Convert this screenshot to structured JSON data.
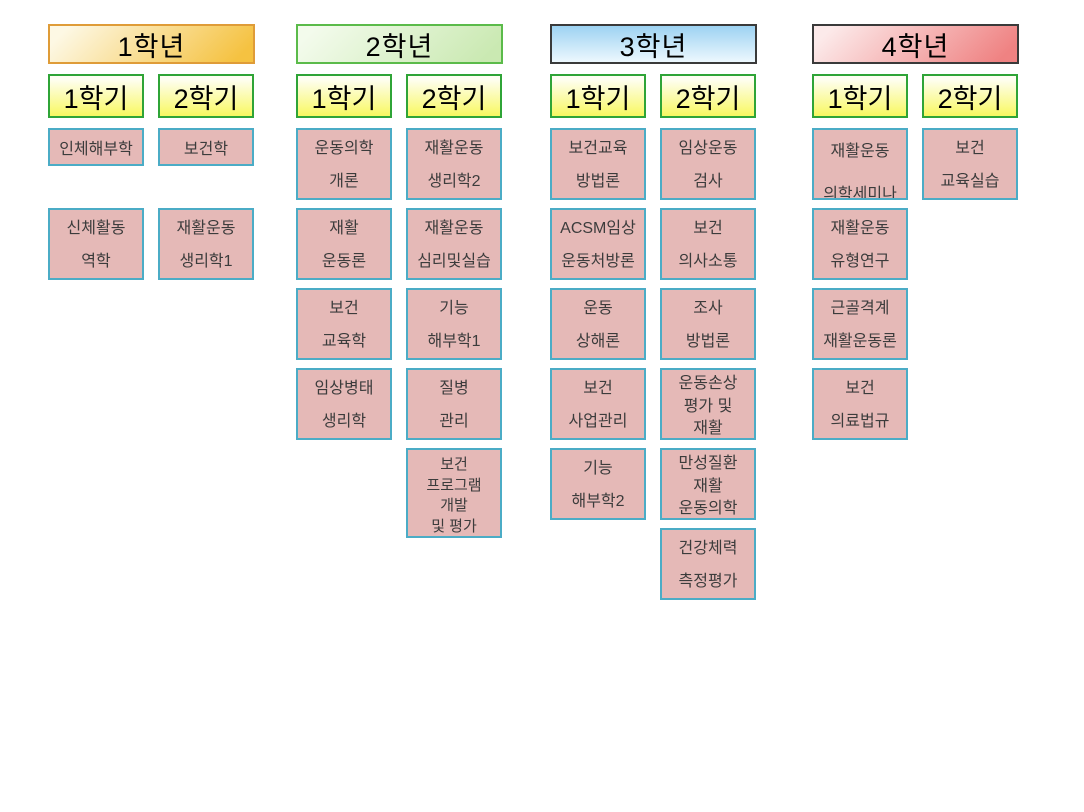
{
  "page": {
    "background": "#ffffff"
  },
  "box_styles": {
    "course": {
      "fill": "#e5b9b7",
      "border": "#4bacc6",
      "text_color": "#3c3c3c"
    },
    "semester": {
      "fill_top": "#fefef2",
      "fill_bottom": "#f8f860",
      "border": "#2fa437"
    }
  },
  "columns": [
    {
      "year": "1학년",
      "header_colors": {
        "from": "#fdf8e4",
        "to": "#f5c241",
        "border": "#df9c38"
      },
      "semesters": [
        {
          "label": "1학기",
          "courses": [
            {
              "lines": [
                "인체해부학"
              ]
            },
            {
              "lines": [
                "신체활동",
                "역학"
              ]
            }
          ]
        },
        {
          "label": "2학기",
          "courses": [
            {
              "lines": [
                "보건학"
              ]
            },
            {
              "lines": [
                "재활운동",
                "생리학1"
              ]
            }
          ]
        }
      ]
    },
    {
      "year": "2학년",
      "header_colors": {
        "from": "#f3fbec",
        "to": "#cae9b2",
        "border": "#5bbb4a"
      },
      "semesters": [
        {
          "label": "1학기",
          "courses": [
            {
              "lines": [
                "운동의학",
                "개론"
              ]
            },
            {
              "lines": [
                "재활",
                "운동론"
              ]
            },
            {
              "lines": [
                "보건",
                "교육학"
              ]
            },
            {
              "lines": [
                "임상병태",
                "생리학"
              ]
            }
          ]
        },
        {
          "label": "2학기",
          "courses": [
            {
              "lines": [
                "재활운동",
                "생리학2"
              ]
            },
            {
              "lines": [
                "재활운동",
                "심리및실습"
              ]
            },
            {
              "lines": [
                "기능",
                "해부학1"
              ]
            },
            {
              "lines": [
                "질병",
                "관리"
              ]
            },
            {
              "lines": [
                "보건",
                "프로그램",
                "개발",
                "및 평가"
              ]
            }
          ]
        }
      ]
    },
    {
      "year": "3학년",
      "header_colors": {
        "from": "#9dd2f2",
        "to": "#edf8fe",
        "border": "#3a3a3a"
      },
      "semesters": [
        {
          "label": "1학기",
          "courses": [
            {
              "lines": [
                "보건교육",
                "방법론"
              ]
            },
            {
              "lines": [
                "ACSM임상",
                "운동처방론"
              ]
            },
            {
              "lines": [
                "운동",
                "상해론"
              ]
            },
            {
              "lines": [
                "보건",
                "사업관리"
              ]
            },
            {
              "lines": [
                "기능",
                "해부학2"
              ]
            }
          ]
        },
        {
          "label": "2학기",
          "courses": [
            {
              "lines": [
                "임상운동",
                "검사"
              ]
            },
            {
              "lines": [
                "보건",
                "의사소통"
              ]
            },
            {
              "lines": [
                "조사",
                "방법론"
              ]
            },
            {
              "lines": [
                "운동손상",
                "평가 및",
                "재활"
              ]
            },
            {
              "lines": [
                "만성질환",
                "재활",
                "운동의학"
              ]
            },
            {
              "lines": [
                "건강체력",
                "측정평가"
              ]
            }
          ]
        }
      ]
    },
    {
      "year": "4학년",
      "header_colors": {
        "from": "#fceaea",
        "to": "#ef8282",
        "border": "#3a3a3a"
      },
      "semesters": [
        {
          "label": "1학기",
          "courses": [
            {
              "lines": [
                "재활운동",
                "의학세미나"
              ],
              "wide": true
            },
            {
              "lines": [
                "재활운동",
                "유형연구"
              ]
            },
            {
              "lines": [
                "근골격계",
                "재활운동론"
              ]
            },
            {
              "lines": [
                "보건",
                "의료법규"
              ]
            }
          ]
        },
        {
          "label": "2학기",
          "courses": [
            {
              "lines": [
                "보건",
                "교육실습"
              ]
            }
          ]
        }
      ]
    }
  ]
}
